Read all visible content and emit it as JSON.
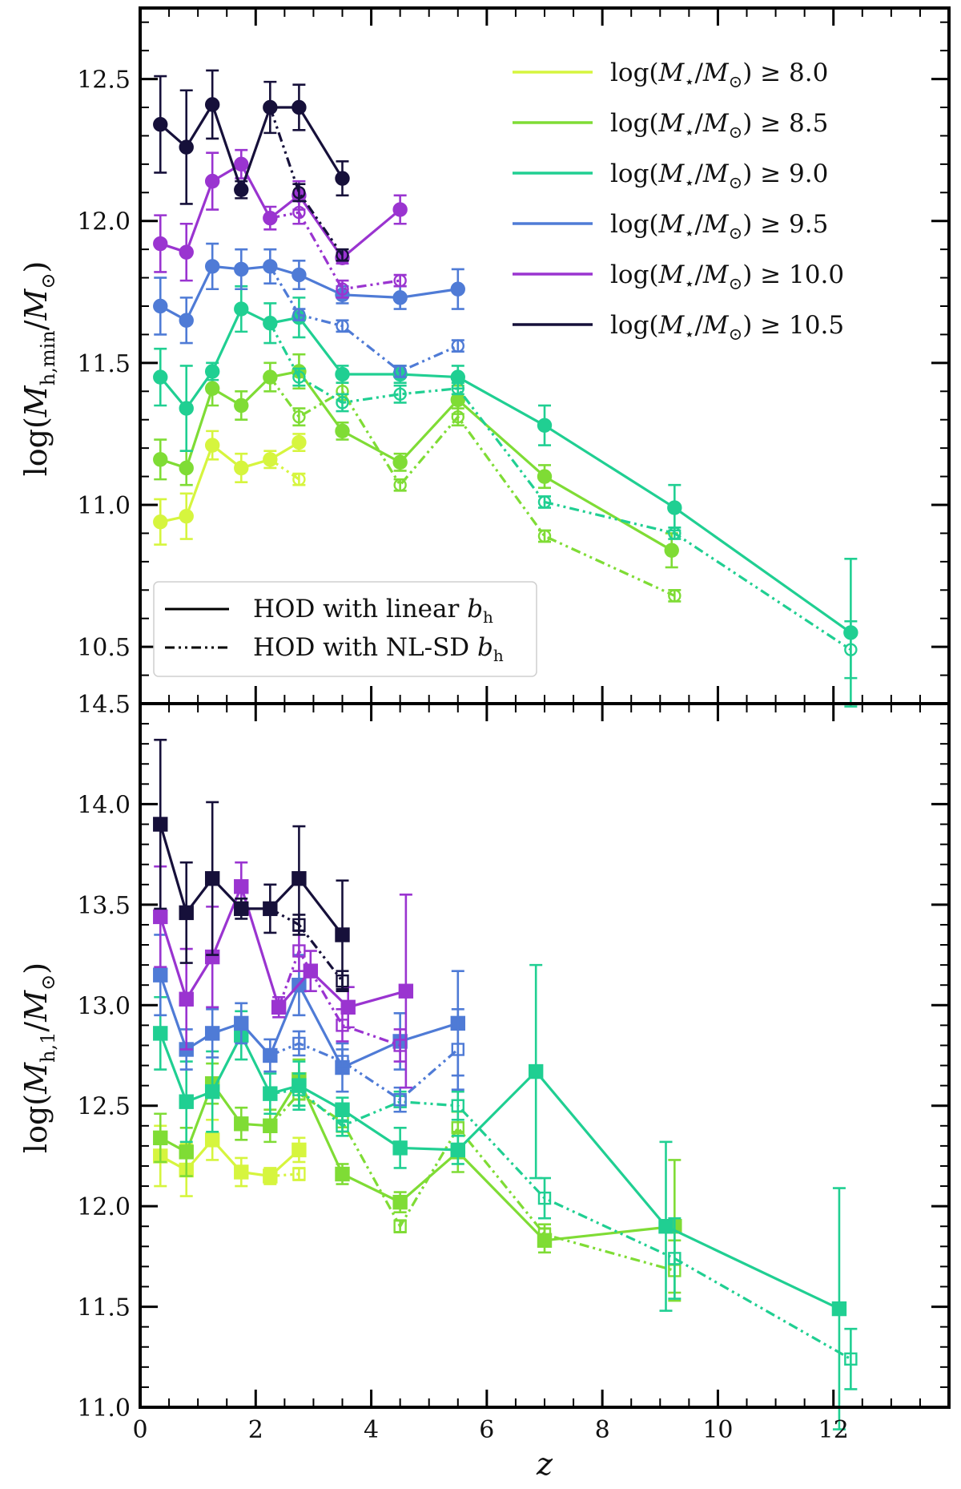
{
  "colors": {
    "8.0": "#d6f53e",
    "8.5": "#7fdc35",
    "9.0": "#20cf92",
    "9.5": "#4f7bd6",
    "10.0": "#9a34d0",
    "10.5": "#16103a"
  },
  "chart_data": [
    {
      "type": "line",
      "panel": "top",
      "ylabel": "log(M_h,min/M_⊙)",
      "ylabel_main": "log(",
      "ylabel_var": "M",
      "ylabel_sub": "h,min",
      "ylabel_rest": "/",
      "ylabel_var2": "M",
      "ylabel_sub2": "⊙",
      "ylabel_close": ")",
      "xlim": [
        0,
        14
      ],
      "ylim": [
        10.3,
        12.75
      ],
      "yticks": [
        10.5,
        11.0,
        11.5,
        12.0,
        12.5
      ],
      "ytick_labels": [
        "10.5",
        "11.0",
        "11.5",
        "12.0",
        "12.5"
      ],
      "marker": "circle",
      "legend_mass": {
        "entries": [
          {
            "key": "8.0",
            "prefix": "log(",
            "var": "M",
            "sub": "⋆",
            "mid": "/",
            "var2": "M",
            "sub2": "⊙",
            "suffix": ") ≥ 8.0"
          },
          {
            "key": "8.5",
            "prefix": "log(",
            "var": "M",
            "sub": "⋆",
            "mid": "/",
            "var2": "M",
            "sub2": "⊙",
            "suffix": ") ≥ 8.5"
          },
          {
            "key": "9.0",
            "prefix": "log(",
            "var": "M",
            "sub": "⋆",
            "mid": "/",
            "var2": "M",
            "sub2": "⊙",
            "suffix": ") ≥ 9.0"
          },
          {
            "key": "9.5",
            "prefix": "log(",
            "var": "M",
            "sub": "⋆",
            "mid": "/",
            "var2": "M",
            "sub2": "⊙",
            "suffix": ") ≥ 9.5"
          },
          {
            "key": "10.0",
            "prefix": "log(",
            "var": "M",
            "sub": "⋆",
            "mid": "/",
            "var2": "M",
            "sub2": "⊙",
            "suffix": ") ≥ 10.0"
          },
          {
            "key": "10.5",
            "prefix": "log(",
            "var": "M",
            "sub": "⋆",
            "mid": "/",
            "var2": "M",
            "sub2": "⊙",
            "suffix": ") ≥ 10.5"
          }
        ]
      },
      "legend_style": {
        "entries": [
          {
            "style": "solid",
            "text": "HOD with linear ",
            "var": "b",
            "sub": "h"
          },
          {
            "style": "dashdot",
            "text": "HOD with NL-SD ",
            "var": "b",
            "sub": "h"
          }
        ]
      },
      "series": [
        {
          "name": "log(M⋆/M⊙) ≥ 8.0",
          "key": "8.0",
          "style": "solid",
          "x": [
            0.35,
            0.8,
            1.25,
            1.75,
            2.25,
            2.75
          ],
          "y": [
            10.94,
            10.96,
            11.21,
            11.13,
            11.16,
            11.22
          ],
          "err": [
            0.08,
            0.08,
            0.05,
            0.05,
            0.03,
            0.03
          ]
        },
        {
          "name": "log(M⋆/M⊙) ≥ 8.0 NL-SD",
          "key": "8.0",
          "style": "dashdot",
          "x": [
            2.25,
            2.75
          ],
          "y": [
            11.16,
            11.09
          ],
          "err": [
            0.0,
            0.02
          ]
        },
        {
          "name": "log(M⋆/M⊙) ≥ 8.5",
          "key": "8.5",
          "style": "solid",
          "x": [
            0.35,
            0.8,
            1.25,
            1.75,
            2.25,
            2.75,
            3.5,
            4.5,
            5.5,
            7.0,
            9.2
          ],
          "y": [
            11.16,
            11.13,
            11.41,
            11.35,
            11.45,
            11.47,
            11.26,
            11.15,
            11.37,
            11.1,
            10.84
          ],
          "err": [
            0.07,
            0.06,
            0.06,
            0.05,
            0.05,
            0.06,
            0.03,
            0.03,
            0.05,
            0.04,
            0.06
          ]
        },
        {
          "name": "log(M⋆/M⊙) ≥ 8.5 NL-SD",
          "key": "8.5",
          "style": "dashdot",
          "x": [
            2.25,
            2.75,
            3.5,
            4.5,
            5.5,
            7.0,
            9.25
          ],
          "y": [
            11.45,
            11.31,
            11.4,
            11.07,
            11.31,
            10.89,
            10.68
          ],
          "err": [
            0.0,
            0.03,
            0.03,
            0.02,
            0.03,
            0.02,
            0.02
          ]
        },
        {
          "name": "log(M⋆/M⊙) ≥ 9.0",
          "key": "9.0",
          "style": "solid",
          "x": [
            0.35,
            0.8,
            1.25,
            1.75,
            2.25,
            2.75,
            3.5,
            4.5,
            5.5,
            7.0,
            9.25,
            12.3
          ],
          "y": [
            11.45,
            11.34,
            11.47,
            11.69,
            11.64,
            11.66,
            11.46,
            11.46,
            11.45,
            11.28,
            10.99,
            10.55
          ],
          "err": [
            0.1,
            0.15,
            0.03,
            0.08,
            0.07,
            0.07,
            0.03,
            0.03,
            0.04,
            0.07,
            0.08,
            0.26
          ]
        },
        {
          "name": "log(M⋆/M⊙) ≥ 9.0 NL-SD",
          "key": "9.0",
          "style": "dashdot",
          "x": [
            2.25,
            2.75,
            3.5,
            4.5,
            5.5,
            7.0,
            9.25,
            12.3
          ],
          "y": [
            11.64,
            11.45,
            11.36,
            11.39,
            11.41,
            11.01,
            10.9,
            10.49
          ],
          "err": [
            0.0,
            0.03,
            0.03,
            0.03,
            0.02,
            0.02,
            0.02,
            0.1
          ]
        },
        {
          "name": "log(M⋆/M⊙) ≥ 9.5",
          "key": "9.5",
          "style": "solid",
          "x": [
            0.35,
            0.8,
            1.25,
            1.75,
            2.25,
            2.75,
            3.5,
            4.5,
            5.5
          ],
          "y": [
            11.7,
            11.65,
            11.84,
            11.83,
            11.84,
            11.81,
            11.74,
            11.73,
            11.76
          ],
          "err": [
            0.1,
            0.08,
            0.08,
            0.07,
            0.06,
            0.05,
            0.03,
            0.04,
            0.07
          ]
        },
        {
          "name": "log(M⋆/M⊙) ≥ 9.5 NL-SD",
          "key": "9.5",
          "style": "dashdot",
          "x": [
            2.25,
            2.75,
            3.5,
            4.5,
            5.5
          ],
          "y": [
            11.84,
            11.67,
            11.63,
            11.47,
            11.56
          ],
          "err": [
            0.0,
            0.02,
            0.02,
            0.02,
            0.02
          ]
        },
        {
          "name": "log(M⋆/M⊙) ≥ 10.0",
          "key": "10.0",
          "style": "solid",
          "x": [
            0.35,
            0.8,
            1.25,
            1.75,
            2.25,
            2.75,
            3.5,
            4.5
          ],
          "y": [
            11.92,
            11.89,
            12.14,
            12.2,
            12.01,
            12.09,
            11.87,
            12.04
          ],
          "err": [
            0.1,
            0.1,
            0.1,
            0.05,
            0.04,
            0.05,
            0.02,
            0.05
          ]
        },
        {
          "name": "log(M⋆/M⊙) ≥ 10.0 NL-SD",
          "key": "10.0",
          "style": "dashdot",
          "x": [
            2.25,
            2.75,
            3.5,
            4.5
          ],
          "y": [
            12.01,
            12.03,
            11.76,
            11.79
          ],
          "err": [
            0.0,
            0.04,
            0.03,
            0.02
          ]
        },
        {
          "name": "log(M⋆/M⊙) ≥ 10.5",
          "key": "10.5",
          "style": "solid",
          "x": [
            0.35,
            0.8,
            1.25,
            1.75,
            2.25,
            2.75,
            3.5
          ],
          "y": [
            12.34,
            12.26,
            12.41,
            12.11,
            12.4,
            12.4,
            12.15
          ],
          "err": [
            0.17,
            0.2,
            0.12,
            0.03,
            0.09,
            0.08,
            0.06
          ]
        },
        {
          "name": "log(M⋆/M⊙) ≥ 10.5 NL-SD",
          "key": "10.5",
          "style": "dashdot",
          "x": [
            2.25,
            2.75,
            3.5
          ],
          "y": [
            12.4,
            12.1,
            11.88
          ],
          "err": [
            0.0,
            0.03,
            0.02
          ]
        }
      ]
    },
    {
      "type": "line",
      "panel": "bottom",
      "ylabel": "log(M_h,1/M_⊙)",
      "ylabel_main": "log(",
      "ylabel_var": "M",
      "ylabel_sub": "h,1",
      "ylabel_rest": "/",
      "ylabel_var2": "M",
      "ylabel_sub2": "⊙",
      "ylabel_close": ")",
      "xlabel": "z",
      "xlim": [
        0,
        14
      ],
      "ylim": [
        11.0,
        14.5
      ],
      "yticks": [
        11.0,
        11.5,
        12.0,
        12.5,
        13.0,
        13.5,
        14.0,
        14.5
      ],
      "ytick_labels": [
        "11.0",
        "11.5",
        "12.0",
        "12.5",
        "13.0",
        "13.5",
        "14.0",
        "14.5"
      ],
      "xticks": [
        0,
        2,
        4,
        6,
        8,
        10,
        12
      ],
      "xtick_labels": [
        "0",
        "2",
        "4",
        "6",
        "8",
        "10",
        "12"
      ],
      "marker": "square",
      "series": [
        {
          "name": "log(M⋆/M⊙) ≥ 8.0",
          "key": "8.0",
          "style": "solid",
          "x": [
            0.35,
            0.8,
            1.25,
            1.75,
            2.25,
            2.75
          ],
          "y": [
            12.25,
            12.18,
            12.33,
            12.17,
            12.15,
            12.28
          ],
          "err": [
            0.15,
            0.13,
            0.1,
            0.07,
            0.04,
            0.06
          ]
        },
        {
          "name": "log(M⋆/M⊙) ≥ 8.0 NL-SD",
          "key": "8.0",
          "style": "dashdot",
          "x": [
            2.25,
            2.75
          ],
          "y": [
            12.15,
            12.16
          ],
          "err": [
            0.0,
            0.03
          ]
        },
        {
          "name": "log(M⋆/M⊙) ≥ 8.5",
          "key": "8.5",
          "style": "solid",
          "x": [
            0.35,
            0.8,
            1.25,
            1.75,
            2.25,
            2.75,
            3.5,
            4.5,
            5.5,
            7.0,
            9.25
          ],
          "y": [
            12.34,
            12.27,
            12.61,
            12.41,
            12.4,
            12.63,
            12.16,
            12.02,
            12.27,
            11.83,
            11.9
          ],
          "err": [
            0.12,
            0.12,
            0.1,
            0.08,
            0.08,
            0.1,
            0.05,
            0.05,
            0.1,
            0.06,
            0.33
          ]
        },
        {
          "name": "log(M⋆/M⊙) ≥ 8.5 NL-SD",
          "key": "8.5",
          "style": "dashdot",
          "x": [
            2.25,
            2.75,
            3.5,
            4.5,
            5.5,
            7.0,
            9.25
          ],
          "y": [
            12.4,
            12.56,
            12.42,
            11.9,
            12.39,
            11.86,
            11.68
          ],
          "err": [
            0.0,
            0.06,
            0.05,
            0.03,
            0.08,
            0.05,
            0.15
          ]
        },
        {
          "name": "log(M⋆/M⊙) ≥ 9.0",
          "key": "9.0",
          "style": "solid",
          "x": [
            0.35,
            0.8,
            1.25,
            1.75,
            2.25,
            2.75,
            3.5,
            4.5,
            5.5,
            6.85,
            9.1,
            12.1
          ],
          "y": [
            12.86,
            12.52,
            12.57,
            12.85,
            12.56,
            12.6,
            12.48,
            12.29,
            12.28,
            12.67,
            11.9,
            11.49
          ],
          "err": [
            0.18,
            0.2,
            0.2,
            0.12,
            0.1,
            0.12,
            0.06,
            0.1,
            0.07,
            0.53,
            0.42,
            0.6
          ]
        },
        {
          "name": "log(M⋆/M⊙) ≥ 9.0 NL-SD",
          "key": "9.0",
          "style": "dashdot",
          "x": [
            2.25,
            2.75,
            3.5,
            4.5,
            5.5,
            7.0,
            9.25,
            12.3
          ],
          "y": [
            12.56,
            12.58,
            12.4,
            12.52,
            12.5,
            12.04,
            11.74,
            11.24
          ],
          "err": [
            0.0,
            0.08,
            0.05,
            0.05,
            0.07,
            0.1,
            0.2,
            0.15
          ]
        },
        {
          "name": "log(M⋆/M⊙) ≥ 9.5",
          "key": "9.5",
          "style": "solid",
          "x": [
            0.35,
            0.8,
            1.25,
            1.75,
            2.25,
            2.75,
            3.5,
            4.5,
            5.5
          ],
          "y": [
            13.15,
            12.78,
            12.86,
            12.91,
            12.75,
            13.1,
            12.69,
            12.82,
            12.91
          ],
          "err": [
            0.2,
            0.1,
            0.12,
            0.1,
            0.08,
            0.15,
            0.12,
            0.14,
            0.26
          ]
        },
        {
          "name": "log(M⋆/M⊙) ≥ 9.5 NL-SD",
          "key": "9.5",
          "style": "dashdot",
          "x": [
            2.25,
            2.75,
            3.5,
            4.5,
            5.5
          ],
          "y": [
            12.75,
            12.81,
            12.72,
            12.53,
            12.78
          ],
          "err": [
            0.0,
            0.06,
            0.06,
            0.06,
            0.2
          ]
        },
        {
          "name": "log(M⋆/M⊙) ≥ 10.0",
          "key": "10.0",
          "style": "solid",
          "x": [
            0.35,
            0.8,
            1.25,
            1.75,
            2.4,
            2.95,
            3.6,
            4.6
          ],
          "y": [
            13.44,
            13.03,
            13.24,
            13.59,
            12.99,
            13.17,
            12.99,
            13.07
          ],
          "err": [
            0.25,
            0.25,
            0.25,
            0.12,
            0.05,
            0.1,
            0.1,
            0.48
          ]
        },
        {
          "name": "log(M⋆/M⊙) ≥ 10.0 NL-SD",
          "key": "10.0",
          "style": "dashdot",
          "x": [
            2.4,
            2.75,
            3.5,
            4.5
          ],
          "y": [
            12.99,
            13.27,
            12.9,
            12.8
          ],
          "err": [
            0.0,
            0.1,
            0.08,
            0.08
          ]
        },
        {
          "name": "log(M⋆/M⊙) ≥ 10.5",
          "key": "10.5",
          "style": "solid",
          "x": [
            0.35,
            0.8,
            1.25,
            1.75,
            2.25,
            2.75,
            3.5
          ],
          "y": [
            13.9,
            13.46,
            13.63,
            13.48,
            13.48,
            13.63,
            13.35
          ],
          "err": [
            0.42,
            0.25,
            0.38,
            0.05,
            0.12,
            0.26,
            0.27
          ]
        },
        {
          "name": "log(M⋆/M⊙) ≥ 10.5 NL-SD",
          "key": "10.5",
          "style": "dashdot",
          "x": [
            2.25,
            2.75,
            3.5
          ],
          "y": [
            13.48,
            13.4,
            13.12
          ],
          "err": [
            0.0,
            0.05,
            0.05
          ]
        }
      ]
    }
  ]
}
